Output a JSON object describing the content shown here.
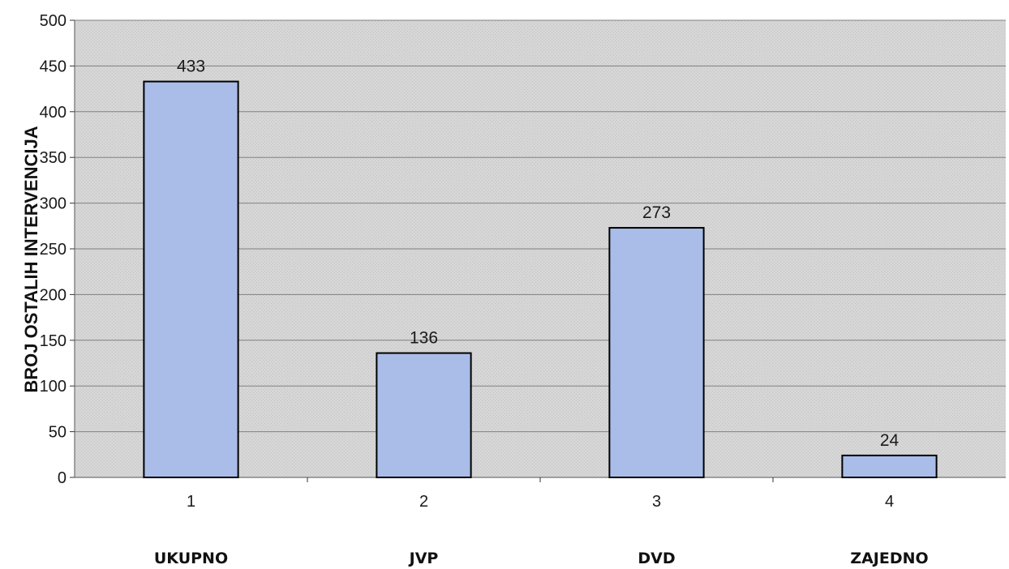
{
  "chart_data": {
    "type": "bar",
    "categories": [
      "1",
      "2",
      "3",
      "4"
    ],
    "category_names": [
      "UKUPNO",
      "JVP",
      "DVD",
      "ZAJEDNO"
    ],
    "values": [
      433,
      136,
      273,
      24
    ],
    "data_labels": [
      "433",
      "136",
      "273",
      "24"
    ],
    "ylabel": "BROJ OSTALIH INTERVENCIJA",
    "ylim": [
      0,
      500
    ],
    "yticks": [
      "0",
      "50",
      "100",
      "150",
      "200",
      "250",
      "300",
      "350",
      "400",
      "450",
      "500"
    ],
    "grid": true,
    "legend": "none",
    "colors": {
      "bar_fill": "#a9bde8",
      "bar_stroke": "#000000",
      "plot_bg": "#d4d4d4",
      "gridline": "#808080"
    }
  }
}
